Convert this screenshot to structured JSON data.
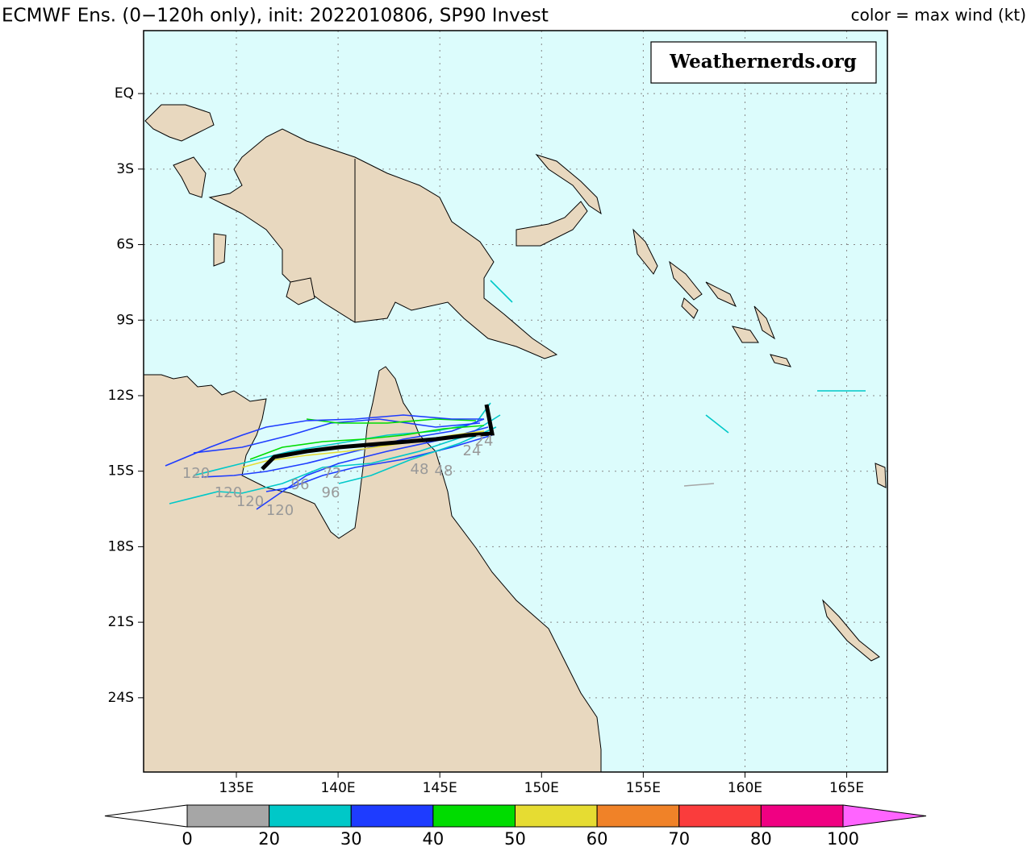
{
  "header": {
    "title": "ECMWF Ens. (0−120h only), init: 2022010806, SP90 Invest",
    "legend_note": "color = max wind (kt)"
  },
  "watermark": "Weathernerds.org",
  "map": {
    "xlim": [
      130.44,
      167.0
    ],
    "ylim": [
      -26.95,
      2.5
    ],
    "xticks": [
      {
        "value": 135,
        "label": "135E"
      },
      {
        "value": 140,
        "label": "140E"
      },
      {
        "value": 145,
        "label": "145E"
      },
      {
        "value": 150,
        "label": "150E"
      },
      {
        "value": 155,
        "label": "155E"
      },
      {
        "value": 160,
        "label": "160E"
      },
      {
        "value": 165,
        "label": "165E"
      }
    ],
    "yticks": [
      {
        "value": 0,
        "label": "EQ"
      },
      {
        "value": -3,
        "label": "3S"
      },
      {
        "value": -6,
        "label": "6S"
      },
      {
        "value": -9,
        "label": "9S"
      },
      {
        "value": -12,
        "label": "12S"
      },
      {
        "value": -15,
        "label": "15S"
      },
      {
        "value": -18,
        "label": "18S"
      },
      {
        "value": -21,
        "label": "21S"
      },
      {
        "value": -24,
        "label": "24S"
      }
    ],
    "ocean_color": "#dcfcfc",
    "grid": true
  },
  "hour_labels": [
    "120",
    "120",
    "120",
    "120",
    "96",
    "96",
    "72",
    "48",
    "48",
    "24",
    "24"
  ],
  "colorbar": {
    "boundaries": [
      0,
      20,
      30,
      40,
      50,
      60,
      70,
      80,
      100
    ],
    "colors": [
      "#a6a6a6",
      "#00c8c8",
      "#1e3cff",
      "#00dc00",
      "#e6dc32",
      "#f08228",
      "#fa3c3c",
      "#f00082"
    ],
    "under": "#ffffff",
    "over": "#ff64ff"
  }
}
